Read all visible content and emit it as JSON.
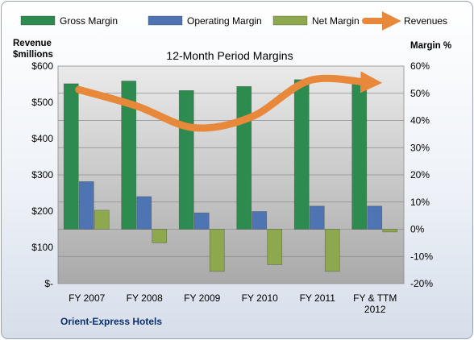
{
  "chart_data": {
    "type": "bar",
    "title": "12-Month Period Margins",
    "company_label": "Orient-Express Hotels",
    "y_left_label": [
      "Revenue",
      "$millions"
    ],
    "y_right_label": "Margin %",
    "categories": [
      [
        "FY 2007"
      ],
      [
        "FY 2008"
      ],
      [
        "FY 2009"
      ],
      [
        "FY 2010"
      ],
      [
        "FY 2011"
      ],
      [
        "FY & TTM",
        "2012"
      ]
    ],
    "y_left": {
      "min": 0,
      "max": 600,
      "step": 100,
      "tick_labels": [
        "$-",
        "$100",
        "$200",
        "$300",
        "$400",
        "$500",
        "$600"
      ]
    },
    "y_right": {
      "min": -20,
      "max": 60,
      "step": 10,
      "tick_labels": [
        "-20%",
        "-10%",
        "0%",
        "10%",
        "20%",
        "30%",
        "40%",
        "50%",
        "60%"
      ]
    },
    "series": [
      {
        "name": "Gross Margin",
        "type": "bar",
        "axis": "right",
        "color": "#2e8b4f",
        "values": [
          53.5,
          54.5,
          51,
          52.5,
          55,
          55
        ]
      },
      {
        "name": "Operating Margin",
        "type": "bar",
        "axis": "right",
        "color": "#4f74b3",
        "values": [
          17.5,
          12,
          6,
          6.5,
          8.5,
          8.5
        ]
      },
      {
        "name": "Net Margin",
        "type": "bar",
        "axis": "right",
        "color": "#8ea94d",
        "values": [
          7,
          -5,
          -15.5,
          -13,
          -15.5,
          -1
        ]
      },
      {
        "name": "Revenues",
        "type": "line",
        "axis": "left",
        "color": "#e8883a",
        "values": [
          535,
          490,
          430,
          460,
          560,
          555
        ]
      }
    ],
    "grid": true,
    "legend": "top"
  }
}
